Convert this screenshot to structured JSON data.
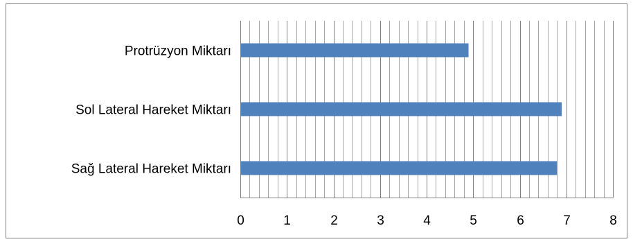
{
  "chart_data": {
    "type": "bar",
    "orientation": "horizontal",
    "categories": [
      "Protrüzyon Miktarı",
      "Sol Lateral Hareket Miktarı",
      "Sağ Lateral Hareket Miktarı"
    ],
    "values": [
      4.9,
      6.9,
      6.8
    ],
    "xlim": [
      0,
      8
    ],
    "major_ticks": [
      "0",
      "1",
      "2",
      "3",
      "4",
      "5",
      "6",
      "7",
      "8"
    ],
    "minor_tick_step": 0.2,
    "grid": true,
    "legend": "none",
    "bar_color": "#4f81bd",
    "title": "",
    "xlabel": "",
    "ylabel": ""
  }
}
